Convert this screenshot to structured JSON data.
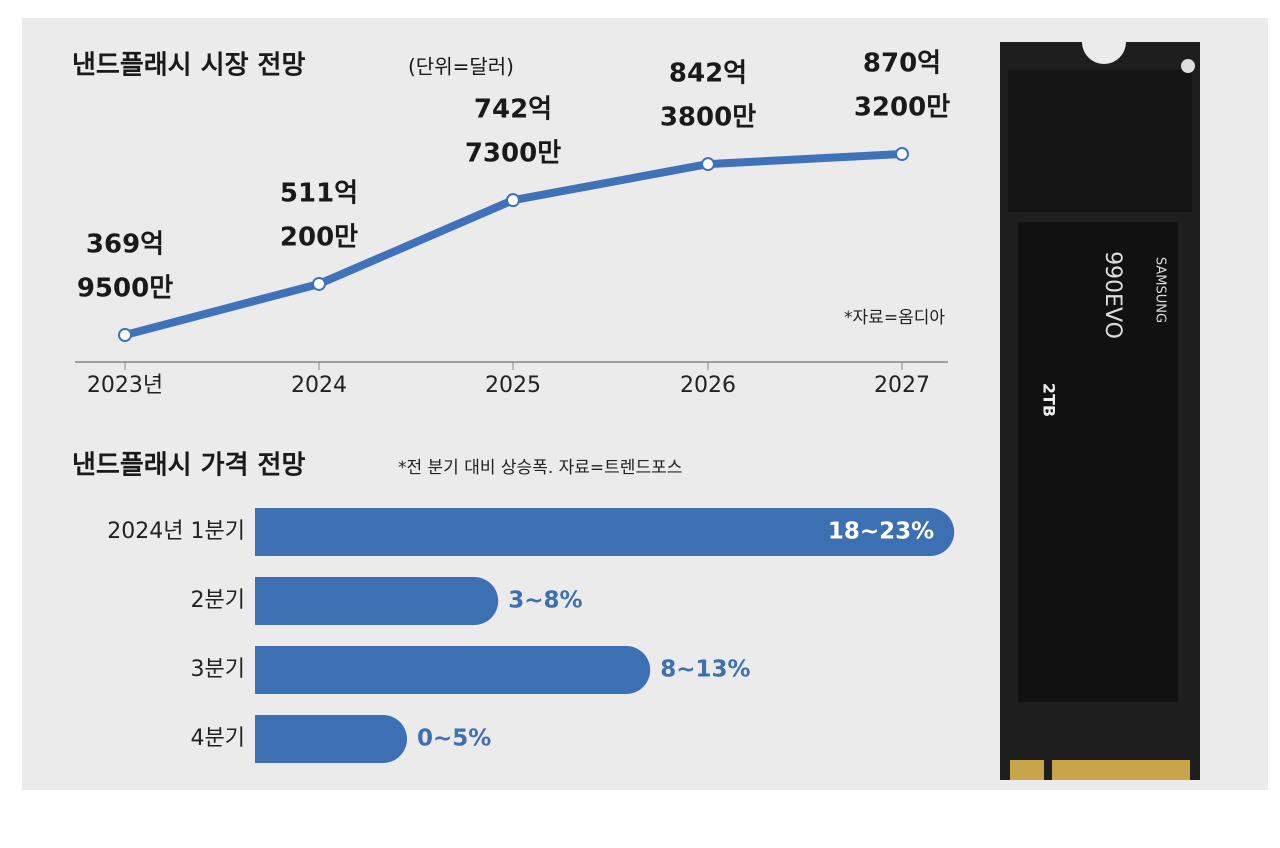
{
  "chart_data": [
    {
      "type": "line",
      "title": "낸드플래시 시장 전망",
      "subtitle": "(단위=달러)",
      "note": "*자료=옴디아",
      "categories": [
        "2023년",
        "2024",
        "2025",
        "2026",
        "2027"
      ],
      "values": [
        369.95,
        511.02,
        742.73,
        842.38,
        870.32
      ],
      "value_labels": [
        [
          "369억",
          "9500만"
        ],
        [
          "511억",
          "200만"
        ],
        [
          "742억",
          "7300만"
        ],
        [
          "842억",
          "3800만"
        ],
        [
          "870억",
          "3200만"
        ]
      ],
      "color": "#3f72b8"
    },
    {
      "type": "hbar",
      "title": "낸드플래시 가격 전망",
      "note": "*전 분기 대비 상승폭. 자료=트렌드포스",
      "categories": [
        "2024년 1분기",
        "2분기",
        "3분기",
        "4분기"
      ],
      "values": [
        23,
        8,
        13,
        5
      ],
      "value_labels": [
        "18~23%",
        "3~8%",
        "8~13%",
        "0~5%"
      ],
      "color": "#3d6fb3"
    }
  ],
  "product_image": {
    "brand": "SAMSUNG",
    "model": "990EVO",
    "capacity": "2TB"
  }
}
